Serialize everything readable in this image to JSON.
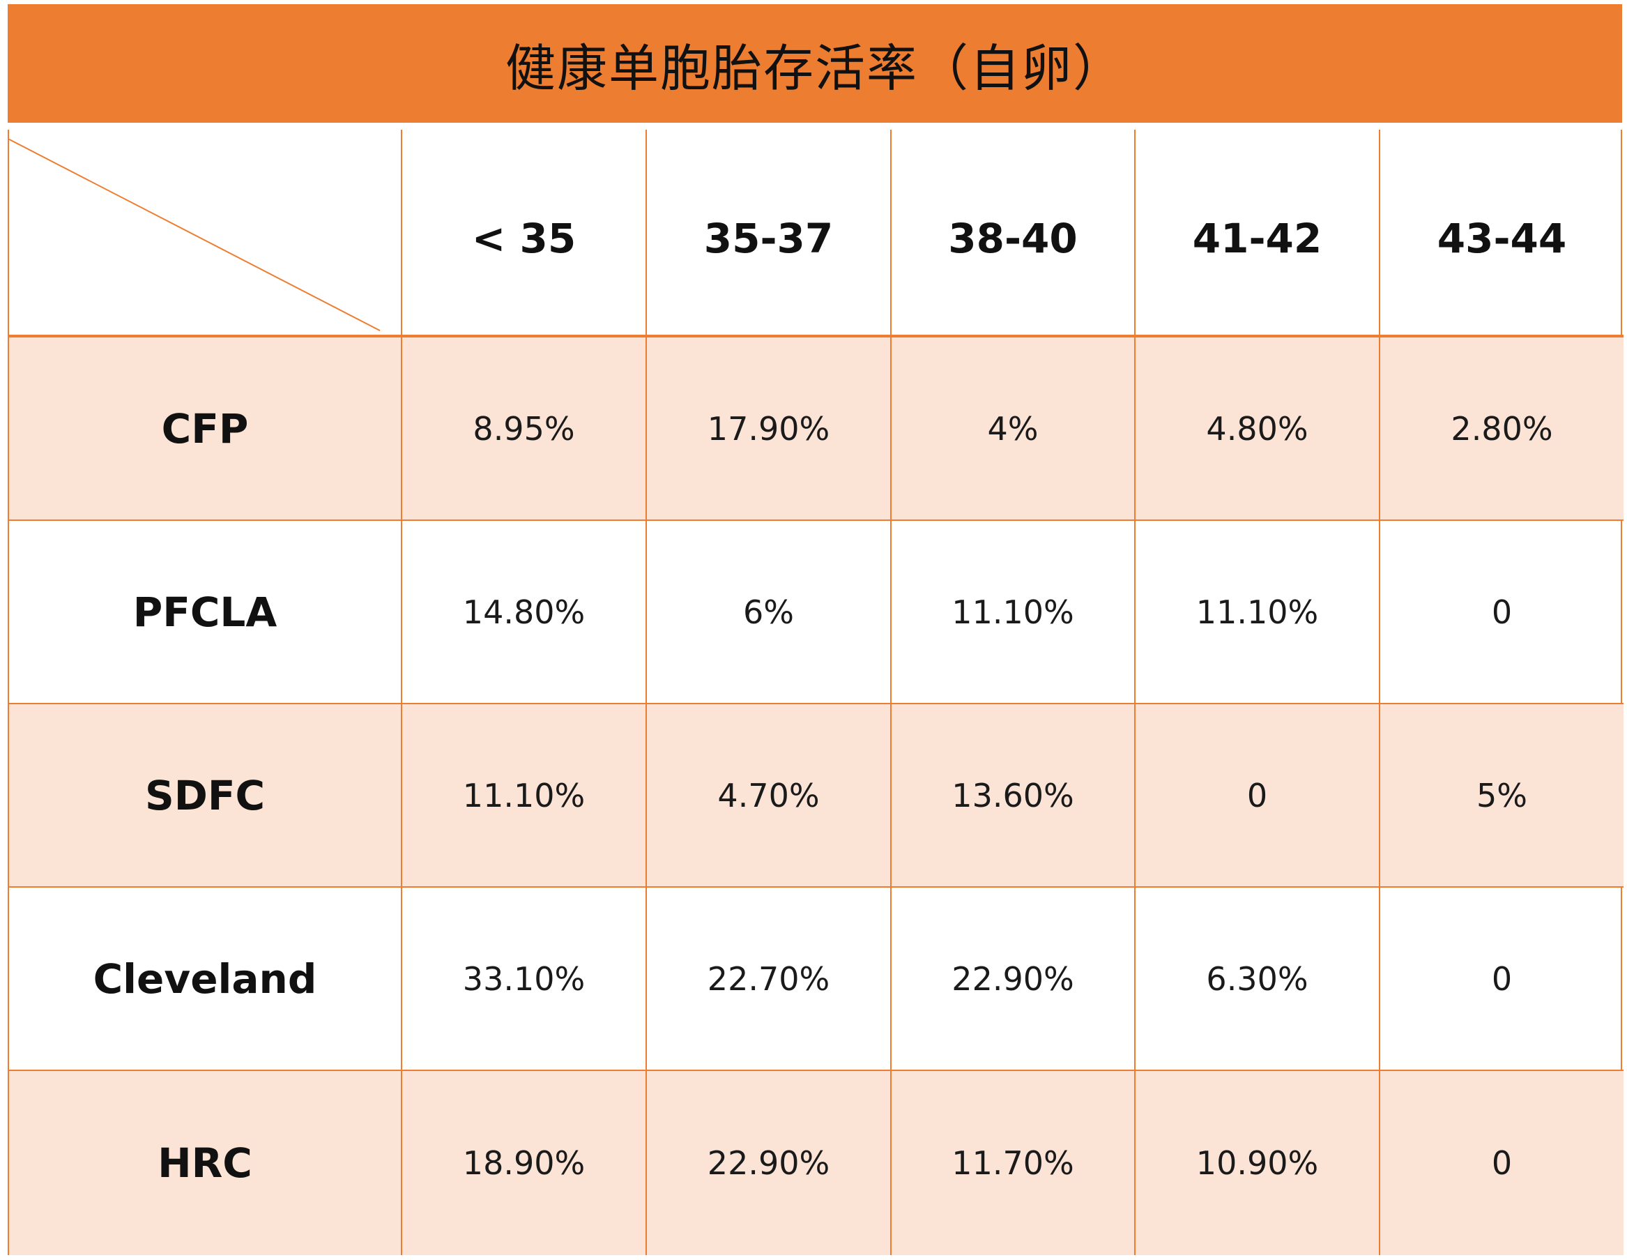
{
  "title": "健康单胞胎存活率（自卵）",
  "colors": {
    "accent": "#ED7D31",
    "row_shade": "#FBE3D6",
    "text": "#111111"
  },
  "chart_data": {
    "type": "table",
    "title": "健康单胞胎存活率（自卵）",
    "columns": [
      "< 35",
      "35-37",
      "38-40",
      "41-42",
      "43-44"
    ],
    "rows": [
      {
        "label": "CFP",
        "values": [
          "8.95%",
          "17.90%",
          "4%",
          "4.80%",
          "2.80%"
        ],
        "shaded": true
      },
      {
        "label": "PFCLA",
        "values": [
          "14.80%",
          "6%",
          "11.10%",
          "11.10%",
          "0"
        ],
        "shaded": false
      },
      {
        "label": "SDFC",
        "values": [
          "11.10%",
          "4.70%",
          "13.60%",
          "0",
          "5%"
        ],
        "shaded": true
      },
      {
        "label": "Cleveland",
        "values": [
          "33.10%",
          "22.70%",
          "22.90%",
          "6.30%",
          "0"
        ],
        "shaded": false
      },
      {
        "label": "HRC",
        "values": [
          "18.90%",
          "22.90%",
          "11.70%",
          "10.90%",
          "0"
        ],
        "shaded": true
      }
    ]
  }
}
